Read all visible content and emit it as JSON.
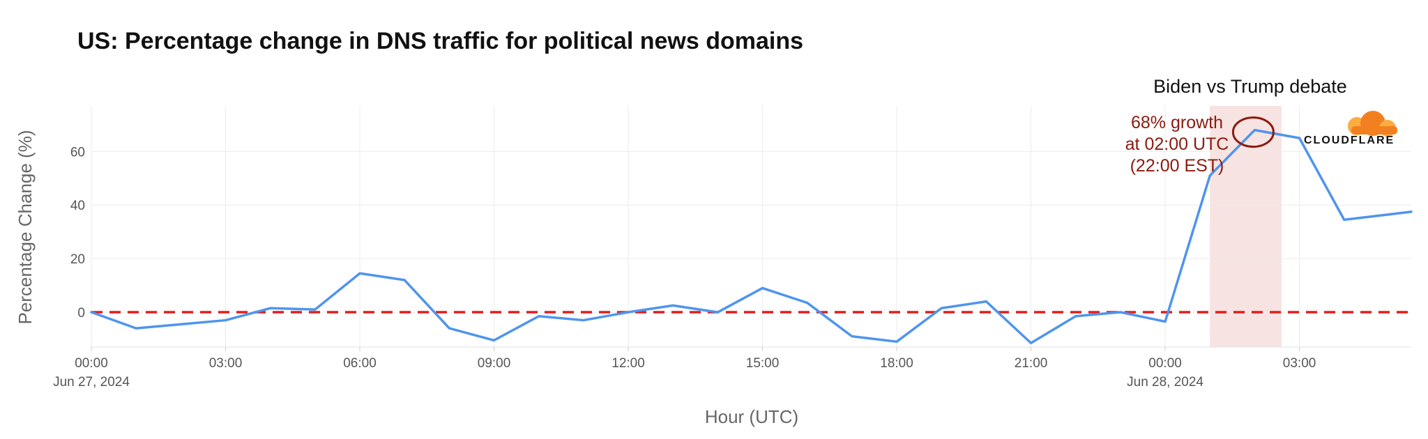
{
  "chart_data": {
    "type": "line",
    "title": "US: Percentage change in DNS traffic for political news domains",
    "xlabel": "Hour (UTC)",
    "ylabel": "Percentage Change (%)",
    "ylim": [
      -13,
      77
    ],
    "yticks": [
      0,
      20,
      40,
      60
    ],
    "xticks": [
      {
        "hour": 0,
        "label": "00:00",
        "sublabel": "Jun 27, 2024"
      },
      {
        "hour": 3,
        "label": "03:00",
        "sublabel": ""
      },
      {
        "hour": 6,
        "label": "06:00",
        "sublabel": ""
      },
      {
        "hour": 9,
        "label": "09:00",
        "sublabel": ""
      },
      {
        "hour": 12,
        "label": "12:00",
        "sublabel": ""
      },
      {
        "hour": 15,
        "label": "15:00",
        "sublabel": ""
      },
      {
        "hour": 18,
        "label": "18:00",
        "sublabel": ""
      },
      {
        "hour": 21,
        "label": "21:00",
        "sublabel": ""
      },
      {
        "hour": 24,
        "label": "00:00",
        "sublabel": "Jun 28, 2024"
      },
      {
        "hour": 27,
        "label": "03:00",
        "sublabel": ""
      }
    ],
    "xlim": [
      0,
      29.5
    ],
    "grid": true,
    "series": [
      {
        "color": "#4f94ef",
        "x": [
          0,
          1,
          2,
          3,
          4,
          5,
          6,
          7,
          8,
          9,
          10,
          11,
          12,
          13,
          14,
          15,
          16,
          17,
          18,
          19,
          20,
          21,
          22,
          23,
          24,
          25,
          26,
          27,
          28,
          29,
          29.5
        ],
        "y": [
          0,
          -6,
          -4.5,
          -3,
          1.5,
          1,
          14.5,
          12,
          -6,
          -10.5,
          -1.5,
          -3,
          0,
          2.5,
          0,
          9,
          3.5,
          -9,
          -11,
          1.5,
          4,
          -11.5,
          -1.5,
          0,
          -3.5,
          51,
          68,
          65,
          34.5,
          36.5,
          37.5
        ]
      }
    ],
    "reference_line": {
      "y": 0,
      "color": "#e11d1d",
      "style": "dashed"
    },
    "event": {
      "label": "Biden vs Trump debate",
      "x_start": 25,
      "x_end": 26.6,
      "color": "#f7e3e1"
    },
    "annotation": {
      "lines": [
        "68% growth",
        "at 02:00 UTC",
        "(22:00 EST)"
      ],
      "point_x": 26,
      "point_y": 68,
      "color": "#8b1a10"
    },
    "logo": {
      "text": "CLOUDFLARE",
      "color": "#f38020",
      "color_light": "#fbad41"
    }
  }
}
